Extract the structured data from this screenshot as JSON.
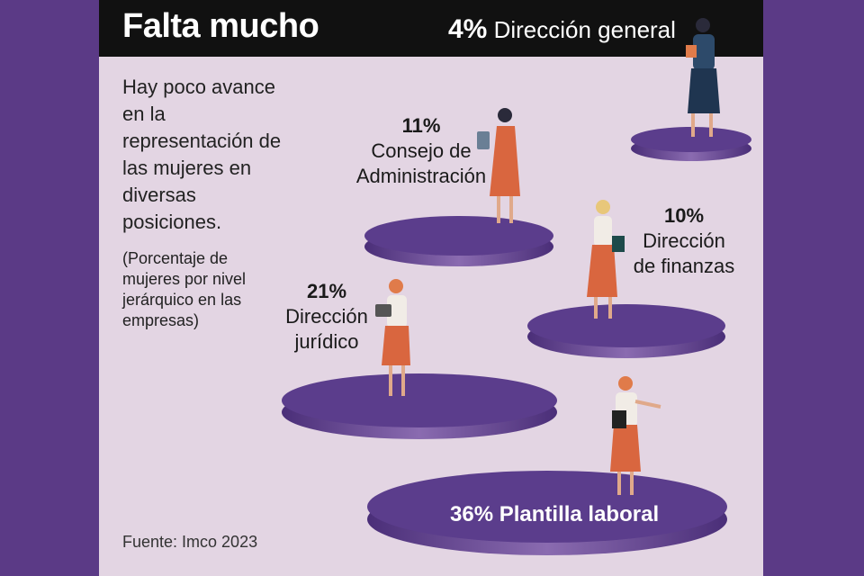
{
  "header": {
    "title": "Falta mucho"
  },
  "intro": "Hay poco avance en la representación de las mujeres en diversas posiciones.",
  "note": "(Porcentaje de mujeres por nivel jerárquico en las empresas)",
  "source": "Fuente: Imco 2023",
  "levels": [
    {
      "pct": "4%",
      "label": "Dirección general",
      "value": 4
    },
    {
      "pct": "11%",
      "label": "Consejo de Administración",
      "value": 11
    },
    {
      "pct": "10%",
      "label": "Dirección de finanzas",
      "value": 10
    },
    {
      "pct": "21%",
      "label": "Dirección jurídico",
      "value": 21
    },
    {
      "pct": "36%",
      "label": "Plantilla laboral",
      "value": 36
    }
  ],
  "colors": {
    "background": "#e3d5e3",
    "platform": "#5b3d8c",
    "frame": "#5b3a86",
    "header": "#111111",
    "figure_dress": "#d9663f"
  }
}
